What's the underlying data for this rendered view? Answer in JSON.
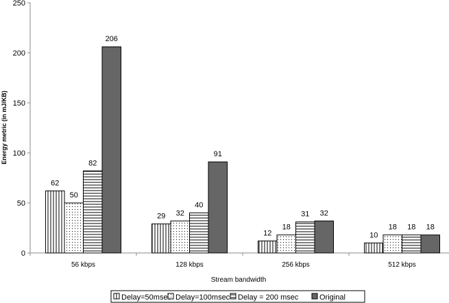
{
  "chart_data": {
    "type": "bar",
    "title": "",
    "xlabel": "Stream bandwidth",
    "ylabel": "Energy metric (in mJ/KB)",
    "ylim": [
      0,
      250
    ],
    "yticks": [
      0,
      50,
      100,
      150,
      200,
      250
    ],
    "grid": false,
    "legend_position": "bottom",
    "categories": [
      "56 kbps",
      "128 kbps",
      "256 kbps",
      "512 kbps"
    ],
    "series": [
      {
        "name": "Delay=50msec",
        "pattern": "vertical-lines",
        "values": [
          62,
          29,
          12,
          10
        ]
      },
      {
        "name": "Delay=100msec",
        "pattern": "dots",
        "values": [
          50,
          32,
          18,
          18
        ]
      },
      {
        "name": "Delay = 200 msec",
        "pattern": "horizontal-lines",
        "values": [
          82,
          40,
          31,
          18
        ]
      },
      {
        "name": "Original",
        "pattern": "solid",
        "color": "#666666",
        "values": [
          206,
          91,
          32,
          18
        ]
      }
    ]
  }
}
